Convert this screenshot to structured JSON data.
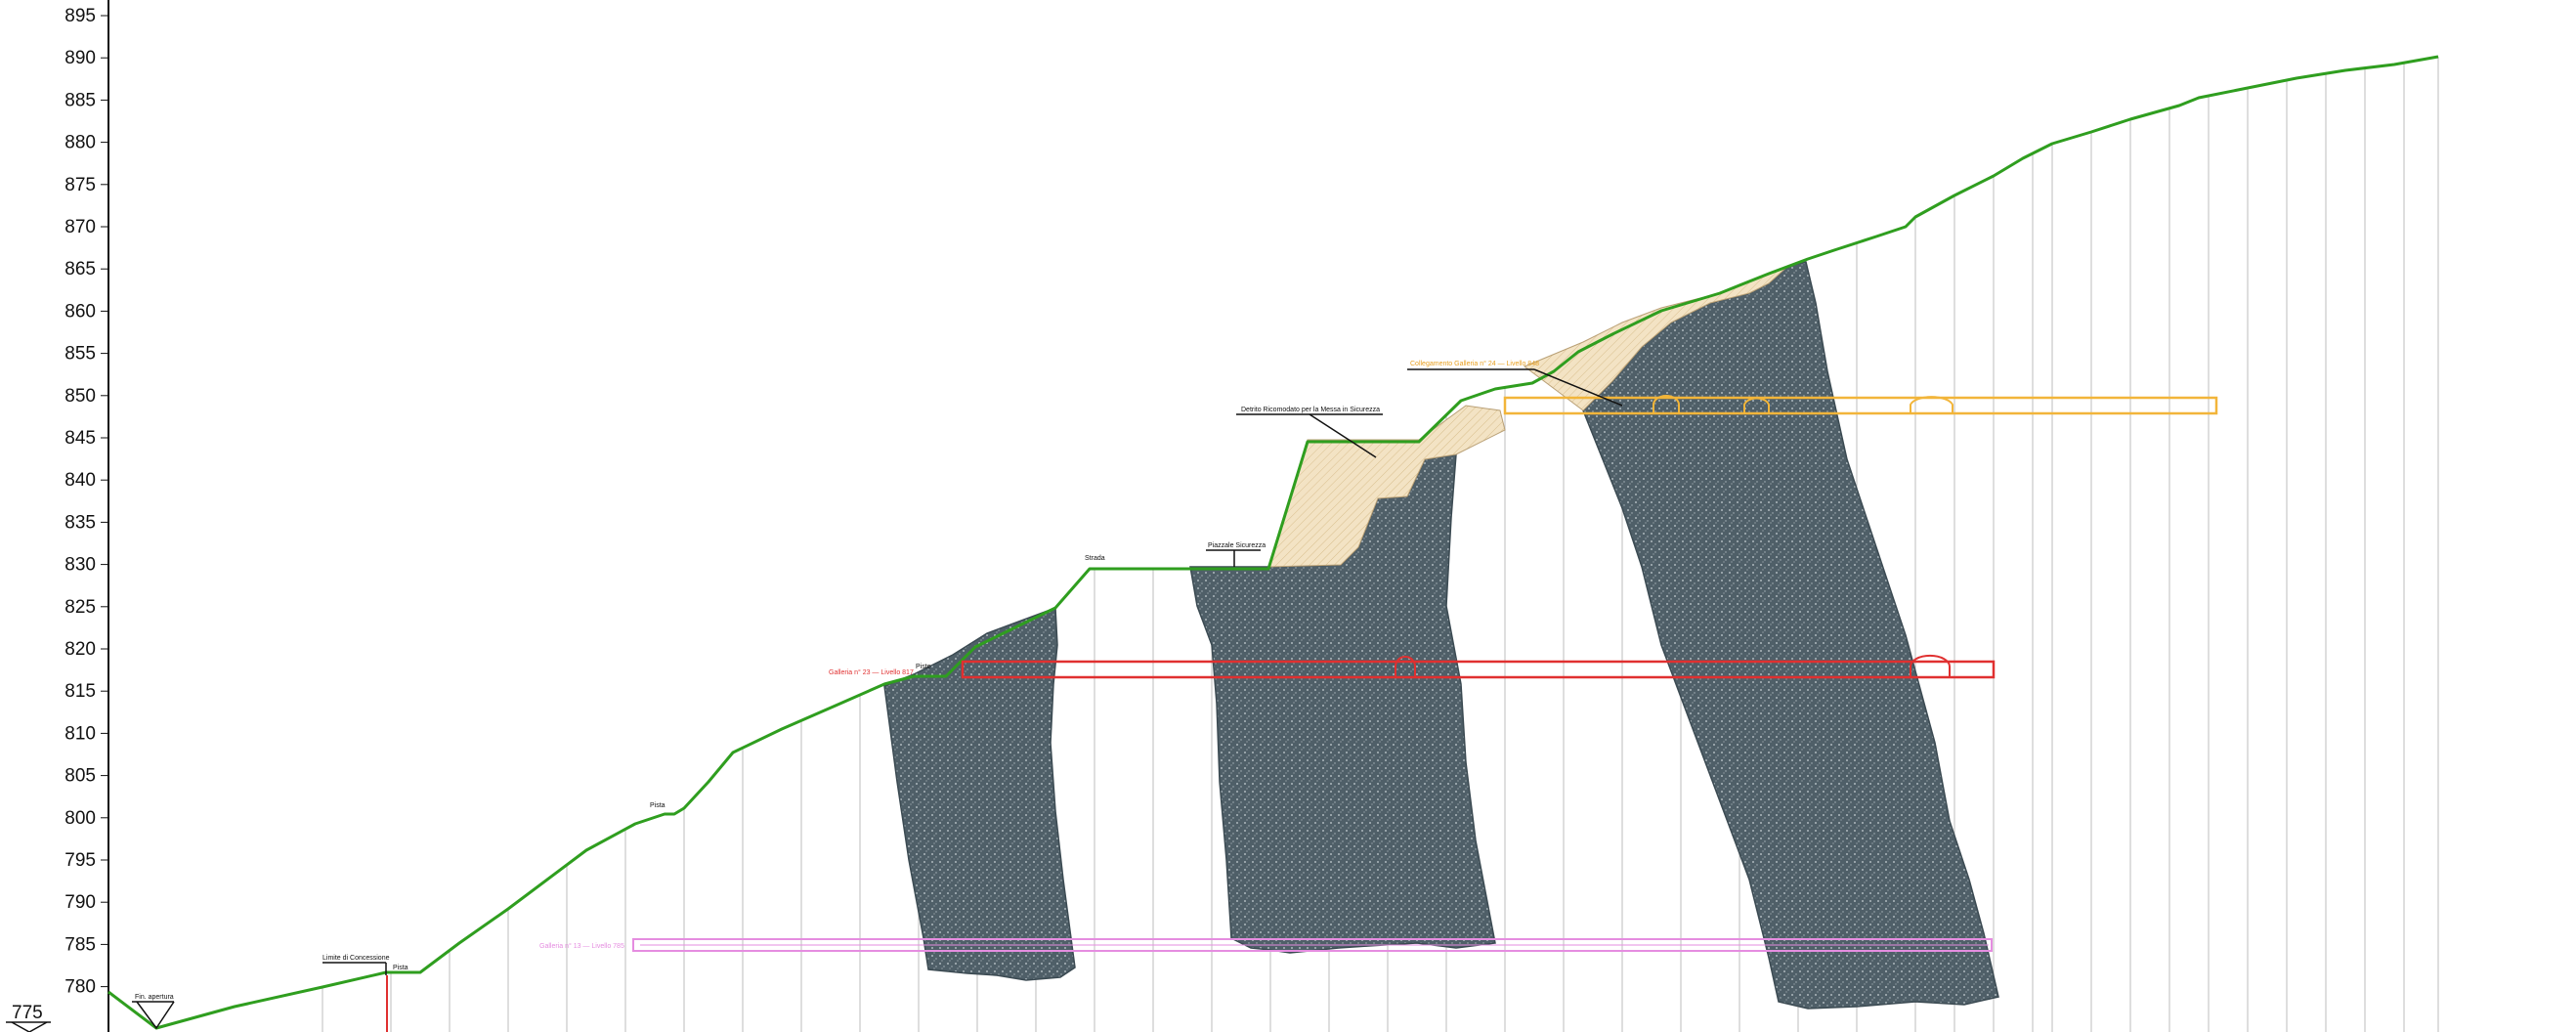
{
  "axis": {
    "y_ticks": [
      "895",
      "890",
      "885",
      "880",
      "875",
      "870",
      "865",
      "860",
      "855",
      "850",
      "845",
      "840",
      "835",
      "830",
      "825",
      "820",
      "815",
      "810",
      "805",
      "800",
      "795",
      "790",
      "785",
      "780"
    ],
    "datum": "775"
  },
  "labels": {
    "gallery_red": "Galleria n° 23 — Livello 817",
    "gallery_magenta": "Galleria n° 13 — Livello 785",
    "gallery_yellow": "Galleria n° 24 — Livello 848",
    "spoil_red_note": "Piste",
    "gallery_yellow_tag": "Collegamento Galleria n° 24 — Livello 848",
    "spoil_note": "Detrito Ricomodato per la Messa in Sicurezza",
    "safety_square": "Piazzale Sicurezza",
    "road": "Strada",
    "track_1": "Pista",
    "track_2": "Pista",
    "concession_limit": "Limite di Concessione",
    "gutter": "Fin. apertura"
  },
  "colors": {
    "terrain": "#2f9e1f",
    "rock": "#4a5a63",
    "spoil": "#f0dfbf",
    "gallery_red": "#e03030",
    "gallery_yellow": "#f2b53a",
    "gallery_magenta": "#e58de0",
    "vertical_lines": "#c8c8c8"
  }
}
